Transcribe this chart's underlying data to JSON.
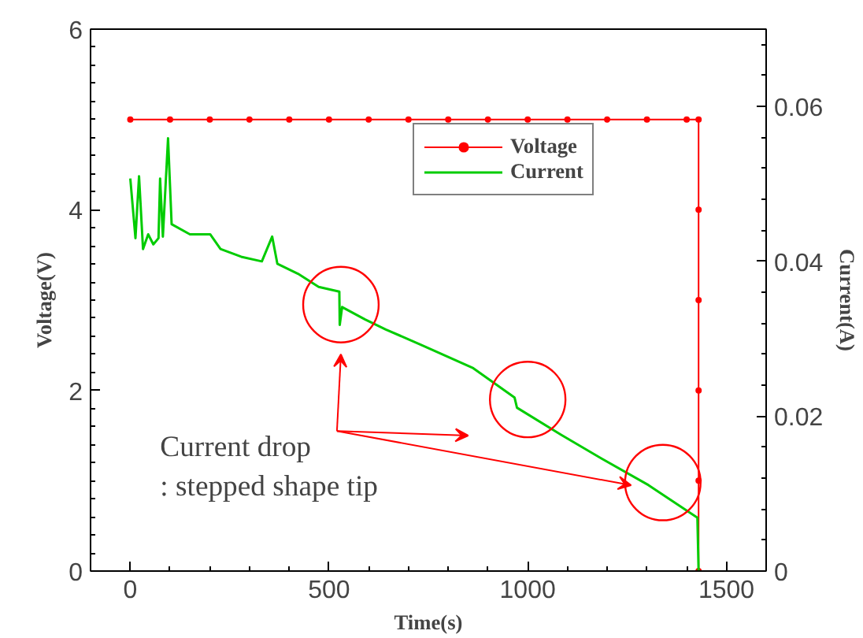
{
  "chart_data": {
    "type": "line",
    "xlabel": "Time(s)",
    "ylabel": "Voltage(V)",
    "y2label": "Current(A)",
    "xlim": [
      -100,
      1600
    ],
    "xticks": [
      0,
      500,
      1000,
      1500
    ],
    "ylim": [
      0,
      6
    ],
    "yticks": [
      0,
      2,
      4,
      6
    ],
    "y2lim": [
      0,
      0.07
    ],
    "y2ticks": [
      0,
      0.02,
      0.04,
      0.06
    ],
    "grid": false,
    "legend": "top right",
    "annotations": [
      "Current drop\n: stepped shape tip"
    ],
    "series": [
      {
        "name": "Voltage",
        "color": "#ff0000",
        "marker": "circle",
        "x": [
          0,
          100,
          200,
          300,
          400,
          500,
          600,
          700,
          800,
          900,
          1000,
          1100,
          1200,
          1300,
          1400,
          1430,
          1430,
          1430,
          1430,
          1430,
          1430
        ],
        "values": [
          5,
          5,
          5,
          5,
          5,
          5,
          5,
          5,
          5,
          5,
          5,
          5,
          5,
          5,
          5,
          5,
          4,
          3,
          2,
          1,
          0
        ]
      },
      {
        "name": "Current",
        "color": "#00cc00",
        "axis": "y2",
        "marker": "none",
        "x": [
          0,
          13,
          22,
          32,
          45,
          58,
          71,
          75,
          82,
          95,
          104,
          150,
          201,
          227,
          279,
          331,
          357,
          370,
          422,
          474,
          526,
          527,
          533,
          591,
          643,
          733,
          863,
          967,
          973,
          1084,
          1187,
          1304,
          1427,
          1430
        ],
        "values": [
          0.0507,
          0.043,
          0.051,
          0.0416,
          0.0435,
          0.0422,
          0.043,
          0.0507,
          0.0432,
          0.0559,
          0.0448,
          0.0435,
          0.0435,
          0.0416,
          0.0406,
          0.04,
          0.0432,
          0.0397,
          0.0384,
          0.0367,
          0.0361,
          0.0318,
          0.0341,
          0.0325,
          0.0312,
          0.0292,
          0.0262,
          0.0224,
          0.0211,
          0.0176,
          0.0145,
          0.0111,
          0.0069,
          0
        ]
      }
    ]
  }
}
